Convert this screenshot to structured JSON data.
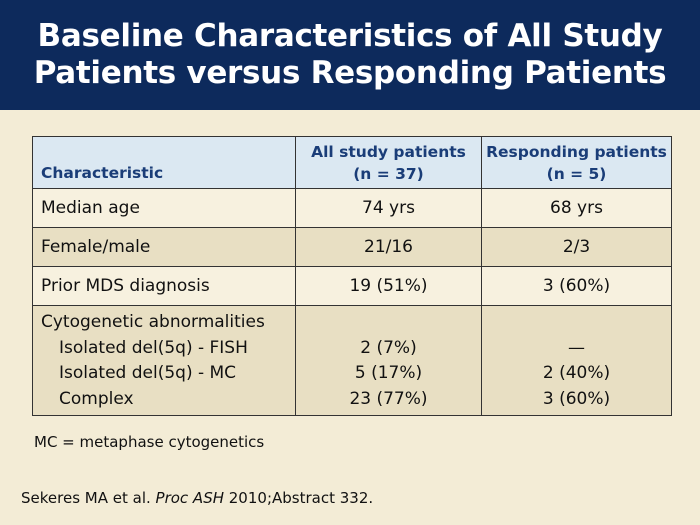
{
  "slide": {
    "title_line1": "Baseline Characteristics of All Study",
    "title_line2": "Patients versus Responding Patients"
  },
  "table": {
    "header": {
      "characteristic": "Characteristic",
      "all_line1": "All study patients",
      "all_line2": "(n = 37)",
      "resp_line1": "Responding patients",
      "resp_line2": "(n = 5)"
    },
    "rows": [
      {
        "label": "Median age",
        "all": "74 yrs",
        "resp": "68 yrs"
      },
      {
        "label": "Female/male",
        "all": "21/16",
        "resp": "2/3"
      },
      {
        "label": "Prior MDS diagnosis",
        "all": "19 (51%)",
        "resp": "3 (60%)"
      }
    ],
    "cytogenetics": {
      "label": "Cytogenetic abnormalities",
      "sub": [
        {
          "label": "Isolated del(5q) - FISH",
          "all": "2 (7%)",
          "resp": "—"
        },
        {
          "label": "Isolated del(5q) - MC",
          "all": "5 (17%)",
          "resp": "2 (40%)"
        },
        {
          "label": "Complex",
          "all": "23 (77%)",
          "resp": "3 (60%)"
        }
      ]
    }
  },
  "footnote": "MC = metaphase cytogenetics",
  "citation": {
    "authors": "Sekeres MA et al. ",
    "journal": "Proc ASH",
    "rest": " 2010;Abstract 332."
  },
  "colors": {
    "header_bg": "#0d2a5c",
    "slide_bg": "#f3ecd6",
    "table_header_bg": "#dbe8f2",
    "table_header_text": "#1a3d78",
    "row_light": "#f7f1df",
    "row_dark": "#e8dfc3"
  }
}
